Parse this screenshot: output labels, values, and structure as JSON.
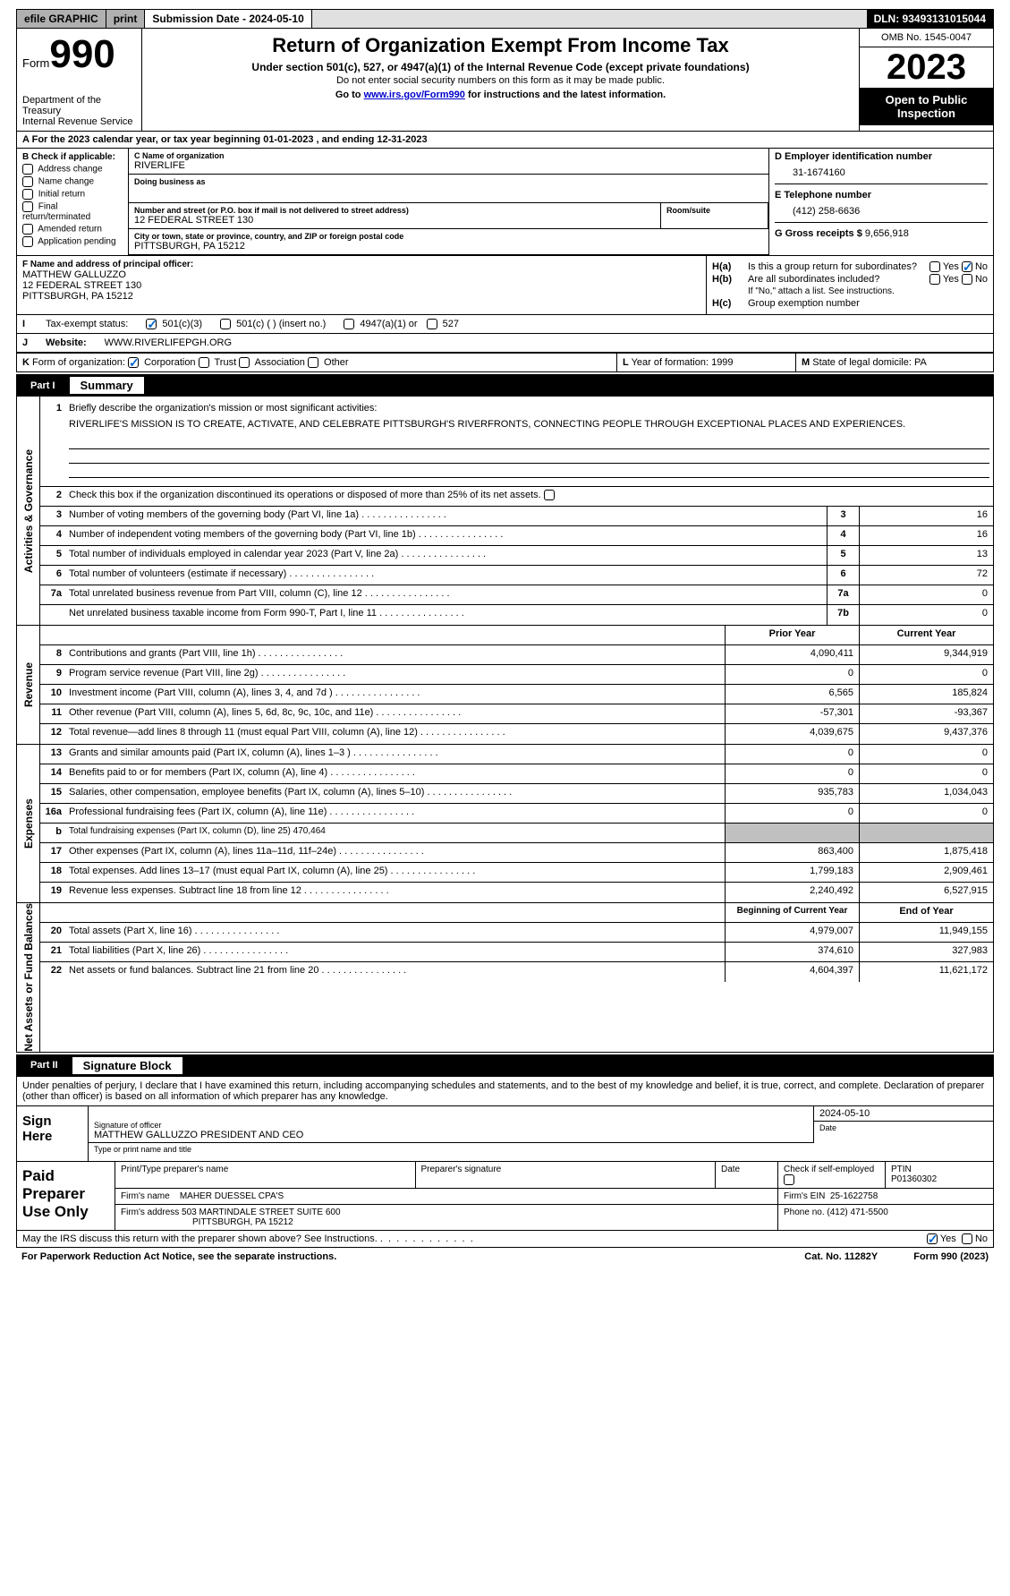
{
  "topbar": {
    "efile": "efile GRAPHIC",
    "print": "print",
    "submission": "Submission Date - 2024-05-10",
    "dln": "DLN: 93493131015044"
  },
  "header": {
    "form_word": "Form",
    "form_num": "990",
    "dept": "Department of the Treasury",
    "irs": "Internal Revenue Service",
    "title": "Return of Organization Exempt From Income Tax",
    "sub1": "Under section 501(c), 527, or 4947(a)(1) of the Internal Revenue Code (except private foundations)",
    "sub2": "Do not enter social security numbers on this form as it may be made public.",
    "sub3_pre": "Go to ",
    "sub3_link": "www.irs.gov/Form990",
    "sub3_post": " for instructions and the latest information.",
    "omb": "OMB No. 1545-0047",
    "year": "2023",
    "inspection": "Open to Public Inspection"
  },
  "line_a": "For the 2023 calendar year, or tax year beginning 01-01-2023    , and ending 12-31-2023",
  "box_b": {
    "label": "B Check if applicable:",
    "items": [
      "Address change",
      "Name change",
      "Initial return",
      "Final return/terminated",
      "Amended return",
      "Application pending"
    ]
  },
  "box_c": {
    "name_lbl": "C Name of organization",
    "name_val": "RIVERLIFE",
    "dba_lbl": "Doing business as",
    "dba_val": "",
    "addr_lbl": "Number and street (or P.O. box if mail is not delivered to street address)",
    "addr_val": "12 FEDERAL STREET 130",
    "suite_lbl": "Room/suite",
    "suite_val": "",
    "city_lbl": "City or town, state or province, country, and ZIP or foreign postal code",
    "city_val": "PITTSBURGH, PA  15212"
  },
  "box_d": {
    "ein_lbl": "D Employer identification number",
    "ein_val": "31-1674160",
    "tel_lbl": "E Telephone number",
    "tel_val": "(412) 258-6636",
    "gross_lbl": "G Gross receipts $",
    "gross_val": "9,656,918"
  },
  "box_f": {
    "lbl": "F  Name and address of principal officer:",
    "name": "MATTHEW GALLUZZO",
    "addr1": "12 FEDERAL STREET 130",
    "addr2": "PITTSBURGH, PA  15212"
  },
  "box_h": {
    "h_a_lbl": "H(a)",
    "h_a_txt": "Is this a group return for subordinates?",
    "h_b_lbl": "H(b)",
    "h_b_txt": "Are all subordinates included?",
    "h_b_note": "If \"No,\" attach a list. See instructions.",
    "h_c_lbl": "H(c)",
    "h_c_txt": "Group exemption number",
    "yes": "Yes",
    "no": "No"
  },
  "row_i": {
    "lbl": "I",
    "txt": "Tax-exempt status:",
    "opt1": "501(c)(3)",
    "opt2": "501(c) (  ) (insert no.)",
    "opt3": "4947(a)(1) or",
    "opt4": "527"
  },
  "row_j": {
    "lbl": "J",
    "txt": "Website:",
    "val": "WWW.RIVERLIFEPGH.ORG"
  },
  "row_k": {
    "lbl": "K",
    "txt": "Form of organization:",
    "opts": [
      "Corporation",
      "Trust",
      "Association",
      "Other"
    ]
  },
  "row_l": {
    "lbl": "L",
    "txt": "Year of formation: 1999"
  },
  "row_m": {
    "lbl": "M",
    "txt": "State of legal domicile: PA"
  },
  "part1": {
    "num": "Part I",
    "title": "Summary"
  },
  "summary": {
    "side1": "Activities & Governance",
    "side2": "Revenue",
    "side3": "Expenses",
    "side4": "Net Assets or Fund Balances",
    "l1_lbl": "Briefly describe the organization's mission or most significant activities:",
    "l1_val": "RIVERLIFE'S MISSION IS TO CREATE, ACTIVATE, AND CELEBRATE PITTSBURGH'S RIVERFRONTS, CONNECTING PEOPLE THROUGH EXCEPTIONAL PLACES AND EXPERIENCES.",
    "l2": "Check this box        if the organization discontinued its operations or disposed of more than 25% of its net assets.",
    "rows_gov": [
      {
        "n": "3",
        "t": "Number of voting members of the governing body (Part VI, line 1a)",
        "b": "3",
        "v": "16"
      },
      {
        "n": "4",
        "t": "Number of independent voting members of the governing body (Part VI, line 1b)",
        "b": "4",
        "v": "16"
      },
      {
        "n": "5",
        "t": "Total number of individuals employed in calendar year 2023 (Part V, line 2a)",
        "b": "5",
        "v": "13"
      },
      {
        "n": "6",
        "t": "Total number of volunteers (estimate if necessary)",
        "b": "6",
        "v": "72"
      },
      {
        "n": "7a",
        "t": "Total unrelated business revenue from Part VIII, column (C), line 12",
        "b": "7a",
        "v": "0"
      },
      {
        "n": "",
        "t": "Net unrelated business taxable income from Form 990-T, Part I, line 11",
        "b": "7b",
        "v": "0"
      }
    ],
    "hdr_prior": "Prior Year",
    "hdr_current": "Current Year",
    "rows_rev": [
      {
        "n": "8",
        "t": "Contributions and grants (Part VIII, line 1h)",
        "p": "4,090,411",
        "c": "9,344,919"
      },
      {
        "n": "9",
        "t": "Program service revenue (Part VIII, line 2g)",
        "p": "0",
        "c": "0"
      },
      {
        "n": "10",
        "t": "Investment income (Part VIII, column (A), lines 3, 4, and 7d )",
        "p": "6,565",
        "c": "185,824"
      },
      {
        "n": "11",
        "t": "Other revenue (Part VIII, column (A), lines 5, 6d, 8c, 9c, 10c, and 11e)",
        "p": "-57,301",
        "c": "-93,367"
      },
      {
        "n": "12",
        "t": "Total revenue—add lines 8 through 11 (must equal Part VIII, column (A), line 12)",
        "p": "4,039,675",
        "c": "9,437,376"
      }
    ],
    "rows_exp": [
      {
        "n": "13",
        "t": "Grants and similar amounts paid (Part IX, column (A), lines 1–3 )",
        "p": "0",
        "c": "0"
      },
      {
        "n": "14",
        "t": "Benefits paid to or for members (Part IX, column (A), line 4)",
        "p": "0",
        "c": "0"
      },
      {
        "n": "15",
        "t": "Salaries, other compensation, employee benefits (Part IX, column (A), lines 5–10)",
        "p": "935,783",
        "c": "1,034,043"
      },
      {
        "n": "16a",
        "t": "Professional fundraising fees (Part IX, column (A), line 11e)",
        "p": "0",
        "c": "0"
      },
      {
        "n": "b",
        "t": "Total fundraising expenses (Part IX, column (D), line 25) 470,464",
        "gray": true
      },
      {
        "n": "17",
        "t": "Other expenses (Part IX, column (A), lines 11a–11d, 11f–24e)",
        "p": "863,400",
        "c": "1,875,418"
      },
      {
        "n": "18",
        "t": "Total expenses. Add lines 13–17 (must equal Part IX, column (A), line 25)",
        "p": "1,799,183",
        "c": "2,909,461"
      },
      {
        "n": "19",
        "t": "Revenue less expenses. Subtract line 18 from line 12",
        "p": "2,240,492",
        "c": "6,527,915"
      }
    ],
    "hdr_begin": "Beginning of Current Year",
    "hdr_end": "End of Year",
    "rows_net": [
      {
        "n": "20",
        "t": "Total assets (Part X, line 16)",
        "p": "4,979,007",
        "c": "11,949,155"
      },
      {
        "n": "21",
        "t": "Total liabilities (Part X, line 26)",
        "p": "374,610",
        "c": "327,983"
      },
      {
        "n": "22",
        "t": "Net assets or fund balances. Subtract line 21 from line 20",
        "p": "4,604,397",
        "c": "11,621,172"
      }
    ]
  },
  "part2": {
    "num": "Part II",
    "title": "Signature Block"
  },
  "sig": {
    "decl": "Under penalties of perjury, I declare that I have examined this return, including accompanying schedules and statements, and to the best of my knowledge and belief, it is true, correct, and complete. Declaration of preparer (other than officer) is based on all information of which preparer has any knowledge.",
    "sign_here": "Sign Here",
    "sig_off_lbl": "Signature of officer",
    "sig_name": "MATTHEW GALLUZZO PRESIDENT AND CEO",
    "type_lbl": "Type or print name and title",
    "date_lbl": "Date",
    "date_val": "2024-05-10",
    "paid": "Paid Preparer Use Only",
    "print_lbl": "Print/Type preparer's name",
    "prep_sig_lbl": "Preparer's signature",
    "chk_lbl": "Check       if self-employed",
    "ptin_lbl": "PTIN",
    "ptin_val": "P01360302",
    "firm_name_lbl": "Firm's name",
    "firm_name_val": "MAHER DUESSEL CPA'S",
    "firm_ein_lbl": "Firm's EIN",
    "firm_ein_val": "25-1622758",
    "firm_addr_lbl": "Firm's address",
    "firm_addr_val1": "503 MARTINDALE STREET SUITE 600",
    "firm_addr_val2": "PITTSBURGH, PA  15212",
    "phone_lbl": "Phone no.",
    "phone_val": "(412) 471-5500",
    "discuss": "May the IRS discuss this return with the preparer shown above? See Instructions.",
    "yes": "Yes",
    "no": "No"
  },
  "footer": {
    "pra": "For Paperwork Reduction Act Notice, see the separate instructions.",
    "cat": "Cat. No. 11282Y",
    "form": "Form 990 (2023)"
  }
}
